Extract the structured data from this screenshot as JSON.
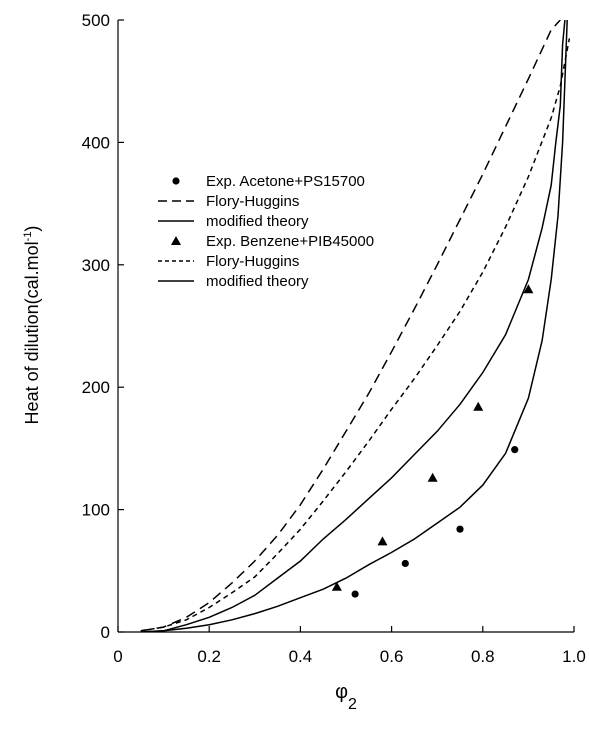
{
  "chart_data": {
    "type": "line",
    "xlabel": "φ",
    "xlabel_sub": "2",
    "ylabel": "Heat of dilution(cal.mol",
    "ylabel_sup": "-1",
    "ylabel_close": ")",
    "xlim": [
      0,
      1.0
    ],
    "ylim": [
      0,
      500
    ],
    "x_ticks": [
      0,
      0.2,
      0.4,
      0.6,
      0.8,
      1.0
    ],
    "x_tick_labels": [
      "0",
      "0.2",
      "0.4",
      "0.6",
      "0.8",
      "1.0"
    ],
    "y_ticks": [
      0,
      100,
      200,
      300,
      400,
      500
    ],
    "y_tick_labels": [
      "0",
      "100",
      "200",
      "300",
      "400",
      "500"
    ],
    "grid": false,
    "legend_position": "upper-left",
    "series": [
      {
        "name": "Exp. Acetone+PS15700",
        "kind": "scatter",
        "marker": "circle",
        "x": [
          0.52,
          0.63,
          0.75,
          0.87
        ],
        "y": [
          31,
          56,
          84,
          149
        ]
      },
      {
        "name": "Flory-Huggins",
        "kind": "line",
        "style": "long-dash",
        "x": [
          0.05,
          0.1,
          0.15,
          0.2,
          0.25,
          0.3,
          0.35,
          0.4,
          0.45,
          0.5,
          0.55,
          0.6,
          0.65,
          0.7,
          0.75,
          0.8,
          0.85,
          0.9,
          0.95,
          0.97
        ],
        "y": [
          1,
          4,
          12,
          24,
          40,
          58,
          79,
          104,
          133,
          164,
          195,
          229,
          264,
          300,
          337,
          374,
          413,
          452,
          492,
          500
        ]
      },
      {
        "name": "modified theory",
        "kind": "line",
        "style": "solid",
        "x": [
          0.05,
          0.1,
          0.15,
          0.2,
          0.25,
          0.3,
          0.35,
          0.4,
          0.45,
          0.5,
          0.55,
          0.6,
          0.65,
          0.7,
          0.75,
          0.8,
          0.85,
          0.9,
          0.93,
          0.95,
          0.965,
          0.975,
          0.985
        ],
        "y": [
          0,
          1,
          3,
          6,
          10,
          15,
          21,
          28,
          35,
          44,
          55,
          65,
          76,
          89,
          102,
          120,
          146,
          191,
          238,
          288,
          340,
          400,
          500
        ]
      },
      {
        "name": "Exp. Benzene+PIB45000",
        "kind": "scatter",
        "marker": "triangle",
        "x": [
          0.48,
          0.58,
          0.69,
          0.79,
          0.9
        ],
        "y": [
          37,
          74,
          126,
          184,
          280
        ]
      },
      {
        "name": "Flory-Huggins",
        "kind": "line",
        "style": "short-dash",
        "x": [
          0.05,
          0.1,
          0.15,
          0.2,
          0.25,
          0.3,
          0.35,
          0.4,
          0.45,
          0.5,
          0.55,
          0.6,
          0.65,
          0.7,
          0.75,
          0.8,
          0.85,
          0.9,
          0.95,
          0.97,
          0.99
        ],
        "y": [
          1,
          4,
          10,
          20,
          32,
          45,
          64,
          84,
          107,
          131,
          156,
          182,
          207,
          234,
          262,
          294,
          331,
          372,
          420,
          446,
          485
        ]
      },
      {
        "name": "modified theory",
        "kind": "line",
        "style": "solid",
        "x": [
          0.05,
          0.1,
          0.15,
          0.2,
          0.25,
          0.3,
          0.35,
          0.4,
          0.45,
          0.5,
          0.55,
          0.6,
          0.65,
          0.7,
          0.75,
          0.8,
          0.85,
          0.9,
          0.93,
          0.95,
          0.96,
          0.97,
          0.975,
          0.98
        ],
        "y": [
          0,
          1,
          6,
          12,
          20,
          30,
          44,
          58,
          76,
          92,
          109,
          126,
          145,
          164,
          186,
          212,
          243,
          288,
          330,
          365,
          400,
          430,
          480,
          500
        ]
      }
    ]
  }
}
